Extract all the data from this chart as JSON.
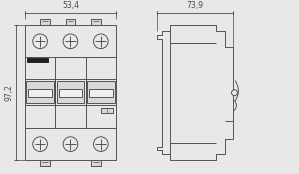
{
  "bg_color": "#e8e8e8",
  "line_color": "#4a4a4a",
  "dim_color": "#4a4a4a",
  "fill_light": "#d8d8d8",
  "fill_white": "#f0f0f0",
  "fill_dark": "#202020",
  "dim_text_53": "53,4",
  "dim_text_73": "73,9",
  "dim_text_97": "97,2",
  "fig_width": 2.99,
  "fig_height": 1.74,
  "dpi": 100
}
